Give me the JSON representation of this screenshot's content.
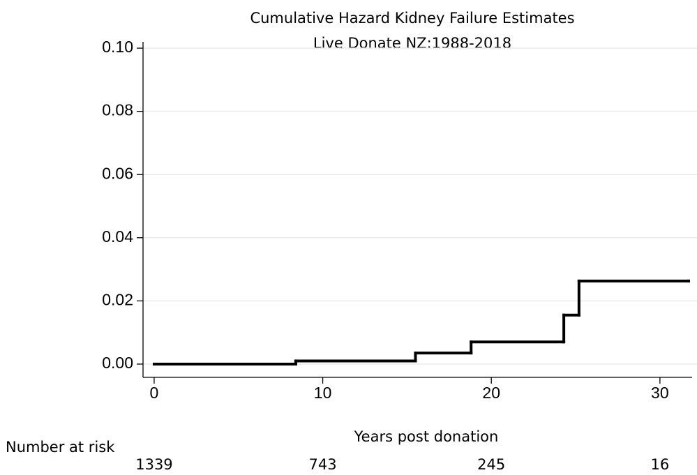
{
  "chart_data": {
    "type": "line",
    "step": "post",
    "title": "Cumulative Hazard Kidney Failure Estimates",
    "subtitle": "Live Donate NZ:1988-2018",
    "x_label": "Years post donation",
    "x": [
      0,
      8.4,
      15.5,
      18.8,
      24.3,
      25.2,
      31.7
    ],
    "series": [
      {
        "color": "#000000",
        "values": [
          0,
          0.001,
          0.0035,
          0.007,
          0.0155,
          0.0263,
          0.0263
        ]
      }
    ],
    "xlim": [
      -0.66,
      32.2
    ],
    "xticks": [
      0,
      10,
      20,
      30
    ],
    "ylim": [
      -0.0042,
      0.102
    ],
    "yticks": [
      {
        "value": 0,
        "label": "0.00"
      },
      {
        "value": 0.02,
        "label": "0.02"
      },
      {
        "value": 0.04,
        "label": "0.04"
      },
      {
        "value": 0.06,
        "label": "0.06"
      },
      {
        "value": 0.08,
        "label": "0.08"
      },
      {
        "value": 0.1,
        "label": "0.10"
      }
    ],
    "grid": true,
    "risk_table": {
      "label": "Number at risk",
      "x": [
        0,
        10,
        20,
        30
      ],
      "values": [
        1339,
        743,
        245,
        16
      ]
    }
  }
}
